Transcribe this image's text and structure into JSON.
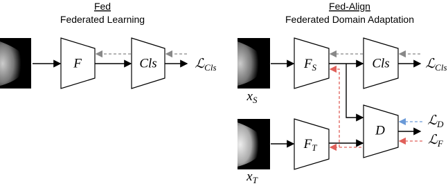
{
  "left": {
    "title": "Fed",
    "subtitle": "Federated Learning",
    "nodes": {
      "encoder": "F",
      "classifier": "Cls",
      "loss": {
        "base": "ℒ",
        "sub": "Cls"
      }
    }
  },
  "right": {
    "title": "Fed-Align",
    "subtitle": "Federated Domain Adaptation",
    "nodes": {
      "source_encoder": {
        "base": "F",
        "sub": "S"
      },
      "classifier": "Cls",
      "loss_cls": {
        "base": "ℒ",
        "sub": "Cls"
      },
      "source_input": {
        "base": "x",
        "sub": "S"
      },
      "discriminator": "D",
      "loss_d": {
        "base": "ℒ",
        "sub": "D"
      },
      "loss_f": {
        "base": "ℒ",
        "sub": "F"
      },
      "target_encoder": {
        "base": "F",
        "sub": "T"
      },
      "target_input": {
        "base": "x",
        "sub": "T"
      }
    }
  }
}
